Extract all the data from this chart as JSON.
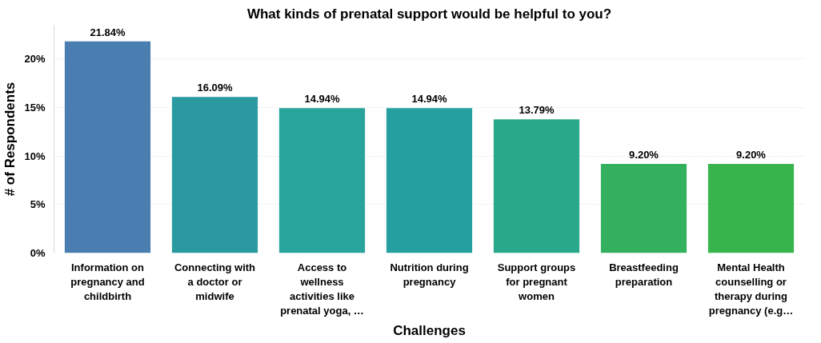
{
  "chart_data": {
    "type": "bar",
    "title": "What kinds of prenatal support would be helpful to you?",
    "xlabel": "Challenges",
    "ylabel": "# of Respondents",
    "categories": [
      "Information on pregnancy and childbirth",
      "Connecting with a doctor or midwife",
      "Access to wellness activities like prenatal yoga, …",
      "Nutrition during pregnancy",
      "Support groups for pregnant women",
      "Breastfeeding preparation",
      "Mental Health counselling or therapy during pregnancy (e.g…"
    ],
    "values": [
      21.84,
      16.09,
      14.94,
      14.94,
      13.79,
      9.2,
      9.2
    ],
    "value_labels": [
      "21.84%",
      "16.09%",
      "14.94%",
      "14.94%",
      "13.79%",
      "9.20%",
      "9.20%"
    ],
    "colors": [
      "#4a7eb0",
      "#2b9aa0",
      "#28a49c",
      "#269fa1",
      "#2aa98a",
      "#34b15e",
      "#38b44d"
    ],
    "ylim": [
      0,
      23.5
    ],
    "yticks": [
      {
        "value": 0,
        "label": "0%"
      },
      {
        "value": 5,
        "label": "5%"
      },
      {
        "value": 10,
        "label": "10%"
      },
      {
        "value": 15,
        "label": "15%"
      },
      {
        "value": 20,
        "label": "20%"
      }
    ],
    "grid": "y"
  }
}
